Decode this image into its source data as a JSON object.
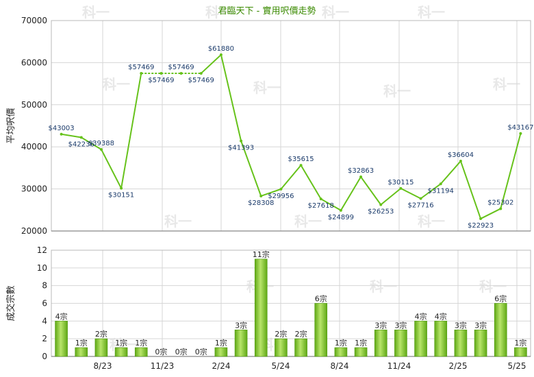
{
  "chart_data": {
    "title": "君臨天下 - 實用呎價走勢",
    "watermark": "科一",
    "x_tick_labels": [
      "8/23",
      "11/23",
      "2/24",
      "5/24",
      "8/24",
      "11/24",
      "2/25",
      "5/25"
    ],
    "charts": [
      {
        "type": "line",
        "ylabel": "平均呎價",
        "ylim": [
          20000,
          70000
        ],
        "yticks": [
          "20000",
          "30000",
          "40000",
          "50000",
          "60000",
          "70000"
        ],
        "line_color": "#66c21a",
        "values": [
          43003,
          42236,
          39388,
          30151,
          57469,
          57469,
          57469,
          57469,
          61880,
          41393,
          28308,
          29956,
          35615,
          27618,
          24899,
          32863,
          26253,
          30115,
          27716,
          31194,
          36604,
          22923,
          25302,
          43167
        ],
        "labels": [
          "$43003",
          "$42236",
          "$39388",
          "$30151",
          "$57469",
          "$57469",
          "$57469",
          "$57469",
          "$61880",
          "$41393",
          "$28308",
          "$29956",
          "$35615",
          "$27618",
          "$24899",
          "$32863",
          "$26253",
          "$30115",
          "$27716",
          "$31194",
          "$36604",
          "$22923",
          "$25302",
          "$43167"
        ],
        "interpolated_segments": [
          [
            4,
            7
          ]
        ]
      },
      {
        "type": "bar",
        "ylabel": "成交宗數",
        "ylim": [
          0,
          12
        ],
        "yticks": [
          "0",
          "2",
          "4",
          "6",
          "8",
          "10",
          "12"
        ],
        "bar_color": "#7cc42a",
        "values": [
          4,
          1,
          2,
          1,
          1,
          0,
          0,
          0,
          1,
          3,
          11,
          2,
          2,
          6,
          1,
          1,
          3,
          3,
          4,
          4,
          3,
          3,
          6,
          1
        ],
        "labels": [
          "4宗",
          "1宗",
          "2宗",
          "1宗",
          "1宗",
          "0宗",
          "0宗",
          "0宗",
          "1宗",
          "3宗",
          "11宗",
          "2宗",
          "2宗",
          "6宗",
          "1宗",
          "1宗",
          "3宗",
          "3宗",
          "4宗",
          "4宗",
          "3宗",
          "3宗",
          "6宗",
          "1宗"
        ]
      }
    ]
  }
}
